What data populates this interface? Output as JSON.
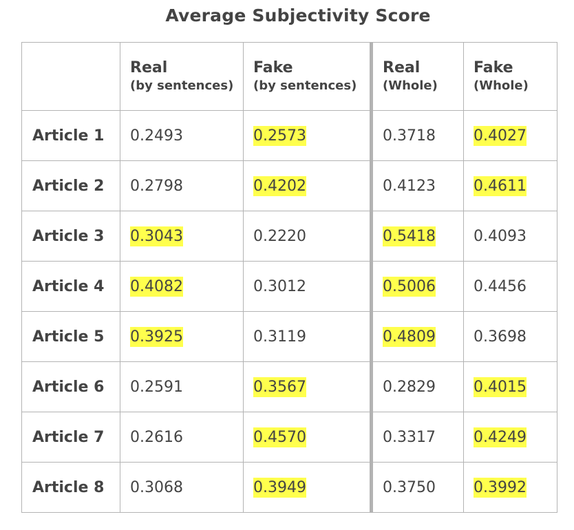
{
  "chart_data": {
    "type": "table",
    "title": "Average Subjectivity Score",
    "columns": [
      {
        "label": "Real",
        "sub": "(by sentences)"
      },
      {
        "label": "Fake",
        "sub": "(by sentences)"
      },
      {
        "label": "Real",
        "sub": "(Whole)"
      },
      {
        "label": "Fake",
        "sub": "(Whole)"
      }
    ],
    "rows": [
      {
        "label": "Article 1",
        "values": [
          "0.2493",
          "0.2573",
          "0.3718",
          "0.4027"
        ],
        "highlight": [
          false,
          true,
          false,
          true
        ]
      },
      {
        "label": "Article 2",
        "values": [
          "0.2798",
          "0.4202",
          "0.4123",
          "0.4611"
        ],
        "highlight": [
          false,
          true,
          false,
          true
        ]
      },
      {
        "label": "Article 3",
        "values": [
          "0.3043",
          "0.2220",
          "0.5418",
          "0.4093"
        ],
        "highlight": [
          true,
          false,
          true,
          false
        ]
      },
      {
        "label": "Article 4",
        "values": [
          "0.4082",
          "0.3012",
          "0.5006",
          "0.4456"
        ],
        "highlight": [
          true,
          false,
          true,
          false
        ]
      },
      {
        "label": "Article 5",
        "values": [
          "0.3925",
          "0.3119",
          "0.4809",
          "0.3698"
        ],
        "highlight": [
          true,
          false,
          true,
          false
        ]
      },
      {
        "label": "Article 6",
        "values": [
          "0.2591",
          "0.3567",
          "0.2829",
          "0.4015"
        ],
        "highlight": [
          false,
          true,
          false,
          true
        ]
      },
      {
        "label": "Article 7",
        "values": [
          "0.2616",
          "0.4570",
          "0.3317",
          "0.4249"
        ],
        "highlight": [
          false,
          true,
          false,
          true
        ]
      },
      {
        "label": "Article 8",
        "values": [
          "0.3068",
          "0.3949",
          "0.3750",
          "0.3992"
        ],
        "highlight": [
          false,
          true,
          false,
          true
        ]
      }
    ],
    "highlight_color": "#ffff4d",
    "grid": true
  }
}
